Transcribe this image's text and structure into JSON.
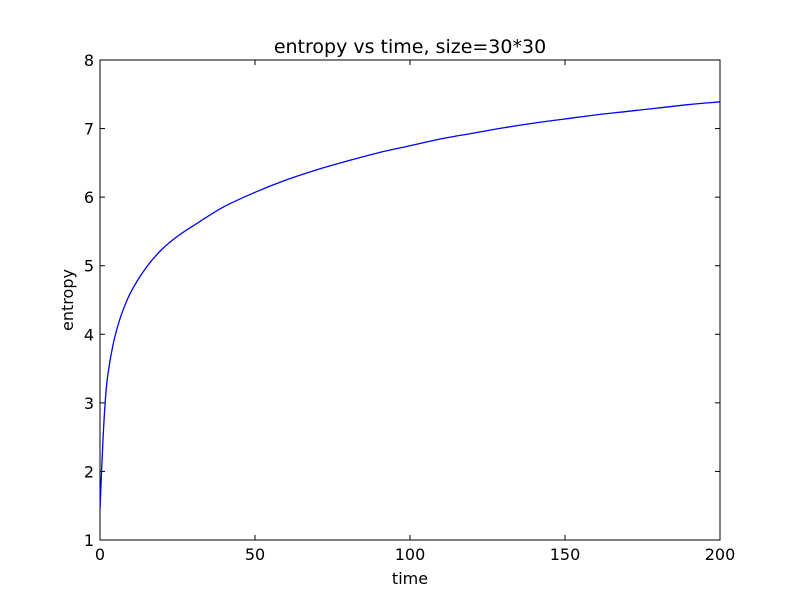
{
  "chart_data": {
    "type": "line",
    "title": "entropy vs time, size=30*30",
    "xlabel": "time",
    "ylabel": "entropy",
    "xlim": [
      0,
      200
    ],
    "ylim": [
      1,
      8
    ],
    "x_ticks": [
      0,
      50,
      100,
      150,
      200
    ],
    "y_ticks": [
      1,
      2,
      3,
      4,
      5,
      6,
      7,
      8
    ],
    "x_tick_labels": [
      "0",
      "50",
      "100",
      "150",
      "200"
    ],
    "y_tick_labels": [
      "1",
      "2",
      "3",
      "4",
      "5",
      "6",
      "7",
      "8"
    ],
    "grid": false,
    "series": [
      {
        "color": "#0000ff",
        "x": [
          0,
          1,
          2,
          3,
          4,
          5,
          7,
          10,
          15,
          20,
          25,
          30,
          40,
          50,
          60,
          70,
          80,
          90,
          100,
          110,
          120,
          130,
          140,
          150,
          160,
          170,
          180,
          190,
          200
        ],
        "y": [
          1.45,
          2.5,
          3.2,
          3.55,
          3.8,
          4.0,
          4.3,
          4.62,
          4.98,
          5.24,
          5.43,
          5.58,
          5.86,
          6.07,
          6.25,
          6.4,
          6.53,
          6.65,
          6.75,
          6.85,
          6.93,
          7.01,
          7.08,
          7.14,
          7.2,
          7.25,
          7.3,
          7.35,
          7.39
        ]
      }
    ]
  }
}
